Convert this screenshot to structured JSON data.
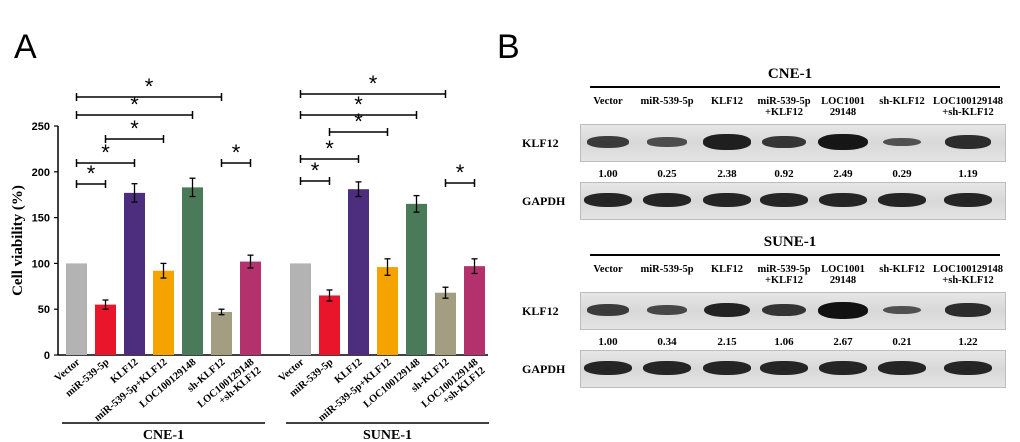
{
  "panels": {
    "a_letter": "A",
    "b_letter": "B"
  },
  "colors": {
    "vector": "#b3b3b3",
    "mir539": "#e8152b",
    "klf12": "#4d2d7e",
    "mir_klf12": "#f4a300",
    "loc": "#4a7a5a",
    "shklf12": "#a39d82",
    "loc_sh": "#b3326e"
  },
  "chart_data": {
    "type": "bar",
    "ylabel": "Cell viability (%)",
    "ylim": [
      0,
      250
    ],
    "yticks": [
      "0",
      "50",
      "100",
      "150",
      "200",
      "250"
    ],
    "categories": [
      "Vector",
      "miR-539-5p",
      "KLF12",
      "miR-539-5p+KLF12",
      "LOC100129148",
      "sh-KLF12",
      "LOC100129148\n+sh-KLF12"
    ],
    "groups": [
      {
        "name": "CNE-1",
        "values": [
          100,
          55,
          177,
          92,
          183,
          47,
          102
        ],
        "errors": [
          0,
          5,
          10,
          8,
          10,
          3,
          7
        ],
        "brackets": [
          [
            0,
            1
          ],
          [
            0,
            2
          ],
          [
            1,
            3
          ],
          [
            0,
            4
          ],
          [
            0,
            5
          ],
          [
            5,
            6
          ]
        ]
      },
      {
        "name": "SUNE-1",
        "values": [
          100,
          65,
          181,
          96,
          165,
          68,
          97
        ],
        "errors": [
          0,
          6,
          8,
          9,
          9,
          6,
          8
        ],
        "brackets": [
          [
            0,
            1
          ],
          [
            0,
            2
          ],
          [
            1,
            3
          ],
          [
            0,
            4
          ],
          [
            0,
            5
          ],
          [
            5,
            6
          ]
        ]
      }
    ],
    "significance_mark": "*"
  },
  "blots": [
    {
      "title": "CNE-1",
      "lanes": [
        "Vector",
        "miR-539-5p",
        "KLF12",
        "miR-539-5p\n+KLF12",
        "LOC1001\n29148",
        "sh-KLF12",
        "LOC100129148\n+sh-KLF12"
      ],
      "target": "KLF12",
      "loading": "GAPDH",
      "ratios": [
        "1.00",
        "0.25",
        "2.38",
        "0.92",
        "2.49",
        "0.29",
        "1.19"
      ]
    },
    {
      "title": "SUNE-1",
      "lanes": [
        "Vector",
        "miR-539-5p",
        "KLF12",
        "miR-539-5p\n+KLF12",
        "LOC1001\n29148",
        "sh-KLF12",
        "LOC100129148\n+sh-KLF12"
      ],
      "target": "KLF12",
      "loading": "GAPDH",
      "ratios": [
        "1.00",
        "0.34",
        "2.15",
        "1.06",
        "2.67",
        "0.21",
        "1.22"
      ]
    }
  ]
}
